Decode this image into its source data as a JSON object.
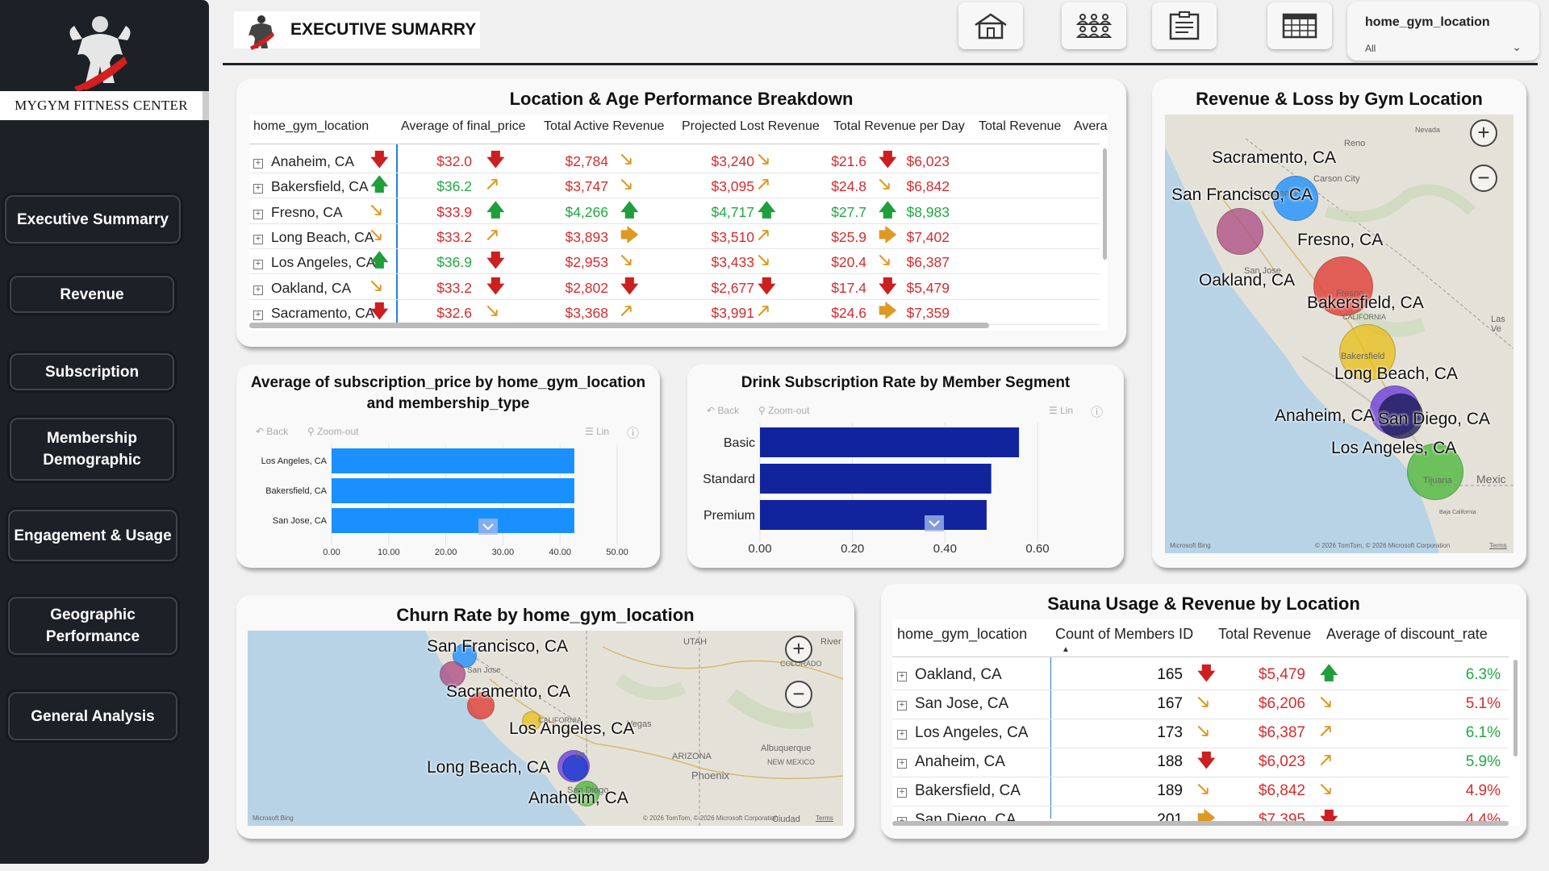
{
  "header": {
    "title": "EXECUTIVE SUMARRY",
    "nav_icons": [
      "home-icon",
      "people-icon",
      "report-icon",
      "table-icon"
    ],
    "slicer": {
      "label": "home_gym_location",
      "value": "All"
    }
  },
  "sidebar": {
    "brand": "MYGYM FITNESS CENTER",
    "items": [
      {
        "label": "Executive Summarry"
      },
      {
        "label": "Revenue"
      },
      {
        "label": "Subscription"
      },
      {
        "label": "Membership Demographic"
      },
      {
        "label": "Engagement & Usage"
      },
      {
        "label": "Geographic Performance"
      },
      {
        "label": "General Analysis"
      }
    ]
  },
  "location_table": {
    "title": "Location & Age Performance Breakdown",
    "columns": [
      "home_gym_location",
      "Average of final_price",
      "Total Active Revenue",
      "Projected Lost Revenue",
      "Total Revenue per Day",
      "Total Revenue",
      "Avera"
    ],
    "rows": [
      {
        "loc": "Anaheim, CA",
        "price": "$32.0",
        "price_arrow": "down",
        "active": "$2,784",
        "active_arrow": "down",
        "lost": "$3,240",
        "lost_arrow": "down-right",
        "perday": "$21.6",
        "perday_arrow": "down-right",
        "total": "$6,023",
        "total_arrow": "down"
      },
      {
        "loc": "Bakersfield, CA",
        "price": "$36.2",
        "price_arrow": "up",
        "active": "$3,747",
        "active_arrow": "up-right",
        "lost": "$3,095",
        "lost_arrow": "down-right",
        "perday": "$24.8",
        "perday_arrow": "up-right",
        "total": "$6,842",
        "total_arrow": "down-right"
      },
      {
        "loc": "Fresno, CA",
        "price": "$33.9",
        "price_arrow": "down-right",
        "active": "$4,266",
        "active_arrow": "up",
        "lost": "$4,717",
        "lost_arrow": "up",
        "perday": "$27.7",
        "perday_arrow": "up",
        "total": "$8,983",
        "total_arrow": "up"
      },
      {
        "loc": "Long Beach, CA",
        "price": "$33.2",
        "price_arrow": "down-right",
        "active": "$3,893",
        "active_arrow": "up-right",
        "lost": "$3,510",
        "lost_arrow": "right",
        "perday": "$25.9",
        "perday_arrow": "up-right",
        "total": "$7,402",
        "total_arrow": "right"
      },
      {
        "loc": "Los Angeles, CA",
        "price": "$36.9",
        "price_arrow": "up",
        "active": "$2,953",
        "active_arrow": "down",
        "lost": "$3,433",
        "lost_arrow": "down-right",
        "perday": "$20.4",
        "perday_arrow": "down-right",
        "total": "$6,387",
        "total_arrow": "down-right"
      },
      {
        "loc": "Oakland, CA",
        "price": "$33.2",
        "price_arrow": "down-right",
        "active": "$2,802",
        "active_arrow": "down",
        "lost": "$2,677",
        "lost_arrow": "down",
        "perday": "$17.4",
        "perday_arrow": "down",
        "total": "$5,479",
        "total_arrow": "down"
      },
      {
        "loc": "Sacramento, CA",
        "price": "$32.6",
        "price_arrow": "down",
        "active": "$3,368",
        "active_arrow": "down-right",
        "lost": "$3,991",
        "lost_arrow": "up-right",
        "perday": "$24.6",
        "perday_arrow": "up-right",
        "total": "$7,359",
        "total_arrow": "right"
      }
    ]
  },
  "subscription_chart": {
    "title": "Average of subscription_price by home_gym_location and membership_type",
    "toolbar": {
      "back": "Back",
      "zoom": "Zoom-out",
      "lin": "Lin"
    },
    "chart_data": {
      "type": "bar",
      "orientation": "horizontal",
      "categories": [
        "Los Angeles, CA",
        "Bakersfield, CA",
        "San Jose, CA"
      ],
      "values": [
        42.5,
        42.5,
        42.5
      ],
      "xlim": [
        0,
        50
      ],
      "ticks": [
        "0.00",
        "10.00",
        "20.00",
        "30.00",
        "40.00",
        "50.00"
      ],
      "color": "#1a90ff"
    }
  },
  "drink_chart": {
    "title": "Drink Subscription Rate by Member Segment",
    "toolbar": {
      "back": "Back",
      "zoom": "Zoom-out",
      "lin": "Lin"
    },
    "chart_data": {
      "type": "bar",
      "orientation": "horizontal",
      "categories": [
        "Basic",
        "Standard",
        "Premium"
      ],
      "values": [
        0.56,
        0.5,
        0.49
      ],
      "xlim": [
        0,
        0.6
      ],
      "ticks": [
        "0.00",
        "0.20",
        "0.40",
        "0.60"
      ],
      "color": "#12239e"
    }
  },
  "revenue_map": {
    "title": "Revenue & Loss by Gym Location",
    "labels": [
      "Sacramento, CA",
      "San Francisco, CA",
      "Fresno, CA",
      "Oakland, CA",
      "Bakersfield, CA",
      "Long Beach, CA",
      "Anaheim, CA",
      "San Diego, CA",
      "Los Angeles, CA"
    ],
    "base_labels": [
      "Nevada",
      "Reno",
      "Carson City",
      "Sacramento",
      "San Jose",
      "Fresno",
      "CALIFORNIA",
      "Bakersfield",
      "Las Ve",
      "Mexic",
      "Tijuana",
      "Baja California"
    ],
    "credit": "© 2026 TomTom, © 2026 Microsoft Corporation",
    "terms": "Terms",
    "provider": "Microsoft Bing"
  },
  "churn_map": {
    "title": "Churn Rate by home_gym_location",
    "labels": [
      "San Francisco, CA",
      "Sacramento, CA",
      "Los Angeles, CA",
      "Long Beach, CA",
      "Anaheim, CA"
    ],
    "base_labels": [
      "UTAH",
      "COLORADO",
      "River",
      "CALIFORNIA",
      "ARIZONA",
      "Albuquerque",
      "NEW MEXICO",
      "Phoenix",
      "San Jose",
      "Lo",
      "San Diego",
      "Vegas",
      "Ciudad"
    ],
    "credit": "© 2026 TomTom, © 2026 Microsoft Corporation",
    "terms": "Terms",
    "provider": "Microsoft Bing"
  },
  "sauna_table": {
    "title": "Sauna Usage & Revenue by Location",
    "columns": [
      "home_gym_location",
      "Count of Members ID",
      "Total Revenue",
      "Average of discount_rate"
    ],
    "rows": [
      {
        "loc": "Oakland, CA",
        "count": "165",
        "count_arrow": "down",
        "rev": "$5,479",
        "rev_arrow": "up",
        "disc": "6.3%"
      },
      {
        "loc": "San Jose, CA",
        "count": "167",
        "count_arrow": "down-right",
        "rev": "$6,206",
        "rev_arrow": "down-right",
        "disc": "5.1%"
      },
      {
        "loc": "Los Angeles, CA",
        "count": "173",
        "count_arrow": "down-right",
        "rev": "$6,387",
        "rev_arrow": "up-right",
        "disc": "6.1%"
      },
      {
        "loc": "Anaheim, CA",
        "count": "188",
        "count_arrow": "down",
        "rev": "$6,023",
        "rev_arrow": "up-right",
        "disc": "5.9%"
      },
      {
        "loc": "Bakersfield, CA",
        "count": "189",
        "count_arrow": "down-right",
        "rev": "$6,842",
        "rev_arrow": "down-right",
        "disc": "4.9%"
      },
      {
        "loc": "San Diego, CA",
        "count": "201",
        "count_arrow": "right",
        "rev": "$7,395",
        "rev_arrow": "down",
        "disc": "4.4%"
      }
    ]
  },
  "colors": {
    "sidebar": "#1c2127",
    "up": "#1f9e3c",
    "down": "#cc1f1f",
    "neutral": "#dd9922"
  }
}
